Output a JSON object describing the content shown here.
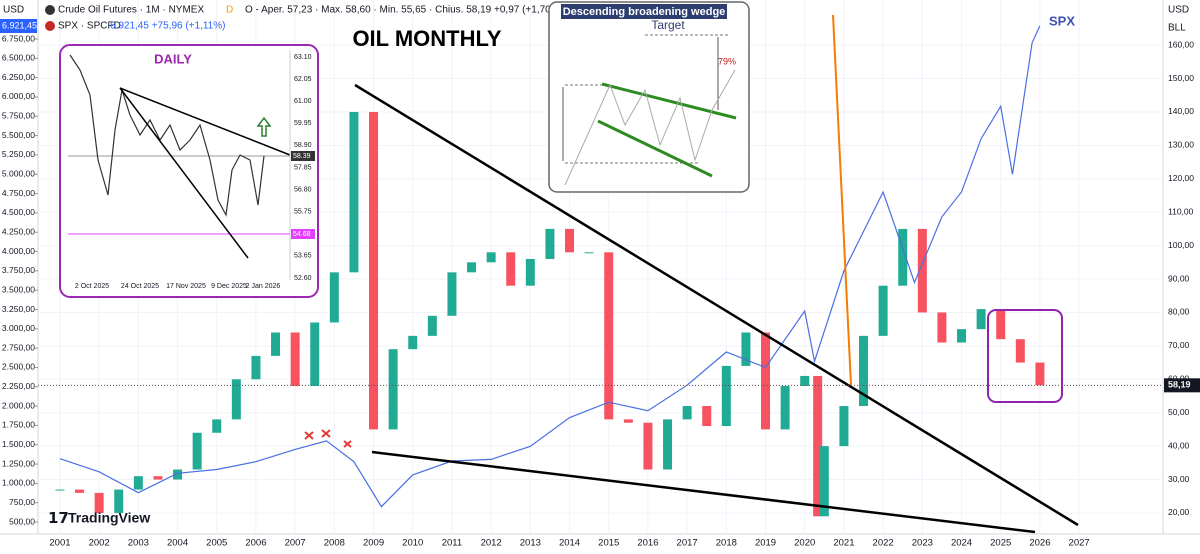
{
  "header": {
    "currency_left": "USD",
    "symbol": "Crude Oil Futures · 1M · NYMEX",
    "badge": "D",
    "ohlc": "O - Aper. 57,23 · Max. 58,60 · Min. 55,65 · Chius. 58,19 +0,97 (+1,70%)",
    "spx_symbol": "SPX · SPCFD",
    "spx_quote": "6.921,45 +75,96 (+1,11%)",
    "spx_price": "6.921,45",
    "last_price": "58,19",
    "currency_right": "USD",
    "unit_right": "BLL",
    "brand": "TradingView"
  },
  "inset_daily": {
    "title": "DAILY",
    "yticks": [
      "63.10",
      "62.05",
      "61.00",
      "59.95",
      "58.90",
      "57.85",
      "56.80",
      "55.75",
      "54.70",
      "53.65",
      "52.60"
    ],
    "price_label": "58.39",
    "level_label": "54.68",
    "xticks": [
      "2 Oct 2025",
      "24 Oct 2025",
      "17 Nov 2025",
      "9 Dec 2025",
      "2 Jan 2026"
    ]
  },
  "inset_pattern": {
    "title": "Descending broadening wedge",
    "target": "Target",
    "percent": "79%"
  },
  "chart_data": {
    "type": "candlestick",
    "title": "OIL MONTHLY",
    "axis": "y2",
    "up_color": "#22ab94",
    "down_color": "#f7525f",
    "x": [
      2001,
      2001.5,
      2002,
      2002.5,
      2003,
      2003.5,
      2004,
      2004.5,
      2005,
      2005.5,
      2006,
      2006.5,
      2007,
      2007.5,
      2008,
      2008.5,
      2009,
      2009.5,
      2010,
      2010.5,
      2011,
      2011.5,
      2012,
      2012.5,
      2013,
      2013.5,
      2014,
      2014.5,
      2015,
      2015.5,
      2016,
      2016.5,
      2017,
      2017.5,
      2018,
      2018.5,
      2019,
      2019.5,
      2020,
      2020.33,
      2020.5,
      2021,
      2021.5,
      2022,
      2022.5,
      2023,
      2023.5,
      2024,
      2024.5,
      2025,
      2025.5,
      2026
    ],
    "values": [
      27,
      26,
      20,
      27,
      31,
      30,
      33,
      44,
      48,
      60,
      67,
      74,
      58,
      77,
      92,
      140,
      45,
      69,
      73,
      79,
      92,
      95,
      98,
      88,
      96,
      105,
      98,
      98,
      48,
      47,
      33,
      48,
      52,
      46,
      64,
      74,
      45,
      58,
      61,
      19,
      40,
      52,
      73,
      88,
      105,
      80,
      71,
      75,
      81,
      72,
      65,
      58.19
    ],
    "series": [
      {
        "name": "SPX",
        "color": "#4a6fe3",
        "x": [
          2001,
          2002,
          2003,
          2004,
          2005,
          2006,
          2007,
          2007.8,
          2008.5,
          2009.2,
          2010,
          2011,
          2012,
          2013,
          2014,
          2015,
          2016,
          2017,
          2018,
          2019,
          2020,
          2020.25,
          2021,
          2022,
          2022.8,
          2023.5,
          2024,
          2024.5,
          2025,
          2025.3,
          2025.8,
          2026
        ],
        "values": [
          1320,
          1150,
          880,
          1130,
          1180,
          1280,
          1440,
          1550,
          1280,
          700,
          1110,
          1290,
          1310,
          1480,
          1850,
          2050,
          1940,
          2270,
          2700,
          2500,
          3230,
          2580,
          3750,
          4770,
          3600,
          4450,
          4770,
          5460,
          5880,
          5000,
          6700,
          6921.45
        ]
      }
    ],
    "xlim": [
      2000.44,
      2029.14
    ],
    "xticks": [
      2001,
      2002,
      2003,
      2004,
      2005,
      2006,
      2007,
      2008,
      2009,
      2010,
      2011,
      2012,
      2013,
      2014,
      2015,
      2016,
      2017,
      2018,
      2019,
      2020,
      2021,
      2022,
      2023,
      2024,
      2025,
      2026,
      2027
    ],
    "ylim": [
      345,
      7255
    ],
    "yticks": [
      {
        "value": 500,
        "label": "500,00"
      },
      {
        "value": 750,
        "label": "750,00"
      },
      {
        "value": 1000,
        "label": "1.000,00"
      },
      {
        "value": 1250,
        "label": "1.250,00"
      },
      {
        "value": 1500,
        "label": "1.500,00"
      },
      {
        "value": 1750,
        "label": "1.750,00"
      },
      {
        "value": 2000,
        "label": "2.000,00"
      },
      {
        "value": 2250,
        "label": "2.250,00"
      },
      {
        "value": 2500,
        "label": "2.500,00"
      },
      {
        "value": 2750,
        "label": "2.750,00"
      },
      {
        "value": 3000,
        "label": "3.000,00"
      },
      {
        "value": 3250,
        "label": "3.250,00"
      },
      {
        "value": 3500,
        "label": "3.500,00"
      },
      {
        "value": 3750,
        "label": "3.750,00"
      },
      {
        "value": 4000,
        "label": "4.000,00"
      },
      {
        "value": 4250,
        "label": "4.250,00"
      },
      {
        "value": 4500,
        "label": "4.500,00"
      },
      {
        "value": 4750,
        "label": "4.750,00"
      },
      {
        "value": 5000,
        "label": "5.000,00"
      },
      {
        "value": 5250,
        "label": "5.250,00"
      },
      {
        "value": 5500,
        "label": "5.500,00"
      },
      {
        "value": 5750,
        "label": "5.750,00"
      },
      {
        "value": 6000,
        "label": "6.000,00"
      },
      {
        "value": 6250,
        "label": "6.250,00"
      },
      {
        "value": 6500,
        "label": "6.500,00"
      },
      {
        "value": 6750,
        "label": "6.750,00"
      }
    ],
    "y2lim": [
      13.7,
      173.5
    ],
    "y2ticks": [
      {
        "value": 20,
        "label": "20,00"
      },
      {
        "value": 30,
        "label": "30,00"
      },
      {
        "value": 40,
        "label": "40,00"
      },
      {
        "value": 50,
        "label": "50,00"
      },
      {
        "value": 60,
        "label": "60,00"
      },
      {
        "value": 70,
        "label": "70,00"
      },
      {
        "value": 80,
        "label": "80,00"
      },
      {
        "value": 90,
        "label": "90,00"
      },
      {
        "value": 100,
        "label": "100,00"
      },
      {
        "value": 110,
        "label": "110,00"
      },
      {
        "value": 120,
        "label": "120,00"
      },
      {
        "value": 130,
        "label": "130,00"
      },
      {
        "value": 140,
        "label": "140,00"
      },
      {
        "value": 150,
        "label": "150,00"
      },
      {
        "value": 160,
        "label": "160,00"
      }
    ],
    "grid": true
  }
}
